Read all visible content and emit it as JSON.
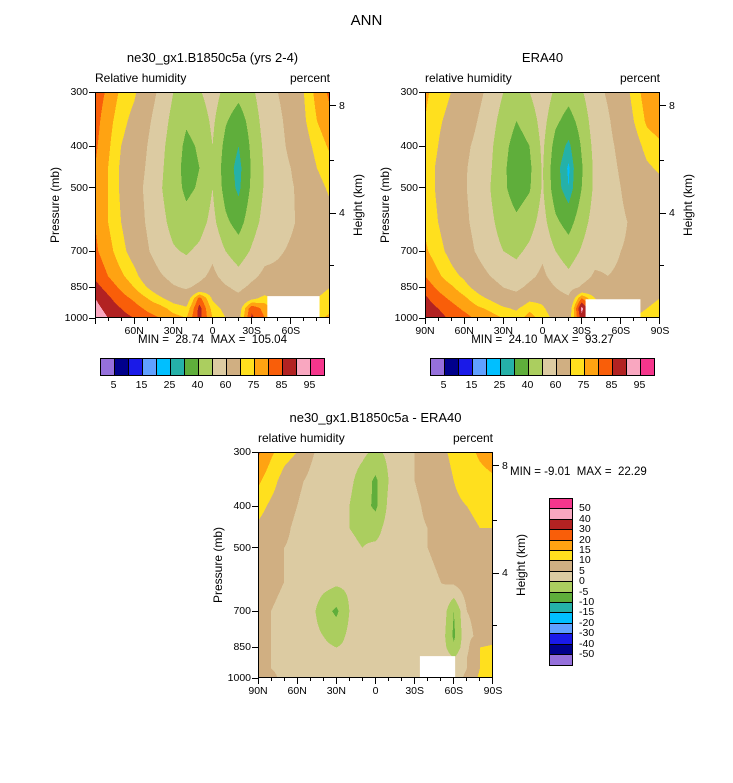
{
  "page_title": "ANN",
  "palette": [
    "#9570DB",
    "#00008B",
    "#1A1AE8",
    "#60A0FF",
    "#00BFFF",
    "#25B1A8",
    "#5FAE3B",
    "#ABCE5F",
    "#DCCBA2",
    "#D0AF82",
    "#FFE01E",
    "#FFA312",
    "#F95E09",
    "#B22222",
    "#F9A7C0",
    "#F5368C"
  ],
  "chart_data": [
    {
      "type": "heatmap",
      "style": "filled-contour-latitude-pressure-section",
      "title": "ne30_gx1.B1850c5a (yrs 2-4)",
      "subtitle_left": "Relative humidity",
      "subtitle_right": "percent",
      "stats_label": "MIN =  28.74  MAX =  105.04",
      "min": 28.74,
      "max": 105.04,
      "ylabel": "Pressure (mb)",
      "y2label": "Height (km)",
      "y_scale": "log-pressure",
      "y_range": [
        300,
        1000
      ],
      "xtick_lats": [
        60,
        30,
        0,
        -30,
        -60
      ],
      "xtick_labels": [
        "60N",
        "30N",
        "0",
        "30S",
        "60S"
      ],
      "ytick_pressures": [
        300,
        400,
        500,
        700,
        850,
        1000
      ],
      "y2ticks": [
        {
          "p": 323,
          "label": "8"
        },
        {
          "p": 432,
          "label": ""
        },
        {
          "p": 572,
          "label": "4"
        },
        {
          "p": 758,
          "label": ""
        }
      ],
      "levels": [
        5,
        10,
        15,
        20,
        25,
        30,
        40,
        50,
        60,
        70,
        75,
        80,
        85,
        90,
        95
      ],
      "colorbar_orientation": "horizontal",
      "colorbar_labels": [
        5,
        15,
        25,
        40,
        60,
        75,
        85,
        95
      ],
      "lats": [
        90,
        80,
        70,
        60,
        50,
        40,
        30,
        20,
        10,
        0,
        -10,
        -20,
        -30,
        -40,
        -50,
        -60,
        -70,
        -80,
        -90
      ],
      "plevs": [
        300,
        350,
        400,
        450,
        500,
        600,
        700,
        800,
        850,
        900,
        950,
        1000
      ],
      "values": [
        [
          83,
          79,
          74,
          71,
          65,
          58,
          50,
          46,
          49,
          55,
          47,
          43,
          48,
          56,
          60,
          64,
          70,
          77,
          81
        ],
        [
          82,
          77,
          72,
          68,
          62,
          55,
          47,
          41,
          44,
          52,
          41,
          35,
          44,
          54,
          58,
          63,
          69,
          75,
          79
        ],
        [
          81,
          76,
          70,
          66,
          60,
          53,
          45,
          38,
          41,
          50,
          37,
          30,
          42,
          52,
          57,
          62,
          67,
          72,
          76
        ],
        [
          80,
          75,
          69,
          65,
          59,
          52,
          44,
          37,
          40,
          49,
          35,
          27,
          41,
          51,
          56,
          60,
          65,
          70,
          73
        ],
        [
          80,
          75,
          69,
          64,
          58,
          51,
          44,
          38,
          41,
          50,
          36,
          28,
          42,
          51,
          56,
          59,
          63,
          68,
          71
        ],
        [
          80,
          75,
          70,
          65,
          59,
          53,
          47,
          43,
          46,
          53,
          42,
          36,
          46,
          53,
          56,
          59,
          62,
          65,
          68
        ],
        [
          81,
          77,
          72,
          67,
          61,
          55,
          51,
          49,
          52,
          58,
          50,
          45,
          51,
          57,
          59,
          61,
          63,
          64,
          66
        ],
        [
          84,
          80,
          76,
          72,
          66,
          61,
          57,
          55,
          58,
          62,
          57,
          53,
          58,
          62,
          62,
          63,
          64,
          66,
          68
        ],
        [
          87,
          83,
          79,
          75,
          70,
          65,
          61,
          59,
          62,
          65,
          61,
          58,
          62,
          65,
          64,
          64,
          66,
          68,
          70
        ],
        [
          90,
          86,
          82,
          79,
          75,
          71,
          67,
          65,
          82,
          69,
          64,
          62,
          68,
          72,
          68,
          66,
          68,
          70,
          72
        ],
        [
          92,
          88,
          85,
          82,
          79,
          77,
          73,
          71,
          87,
          73,
          68,
          66,
          84,
          78,
          72,
          68,
          70,
          72,
          74
        ],
        [
          94,
          90,
          87,
          85,
          82,
          80,
          77,
          75,
          87,
          75,
          70,
          68,
          86,
          80,
          74,
          70,
          72,
          74,
          76
        ]
      ],
      "mask": [
        {
          "lat_n": -42,
          "lat_s": -82,
          "p_top": 890,
          "p_bot": 1000
        }
      ]
    },
    {
      "type": "heatmap",
      "style": "filled-contour-latitude-pressure-section",
      "title": "ERA40",
      "subtitle_left": "relative humidity",
      "subtitle_right": "percent",
      "stats_label": "MIN =  24.10  MAX =  93.27",
      "min": 24.1,
      "max": 93.27,
      "ylabel": "Pressure (mb)",
      "y2label": "Height (km)",
      "y_scale": "log-pressure",
      "y_range": [
        300,
        1000
      ],
      "xtick_lats": [
        90,
        60,
        30,
        0,
        -30,
        -60,
        -90
      ],
      "xtick_labels": [
        "90N",
        "60N",
        "30N",
        "0",
        "30S",
        "60S",
        "90S"
      ],
      "ytick_pressures": [
        300,
        400,
        500,
        700,
        850,
        1000
      ],
      "y2ticks": [
        {
          "p": 323,
          "label": "8"
        },
        {
          "p": 432,
          "label": ""
        },
        {
          "p": 572,
          "label": "4"
        },
        {
          "p": 758,
          "label": ""
        }
      ],
      "levels": [
        5,
        10,
        15,
        20,
        25,
        30,
        40,
        50,
        60,
        70,
        75,
        80,
        85,
        90,
        95
      ],
      "colorbar_orientation": "horizontal",
      "colorbar_labels": [
        5,
        15,
        25,
        40,
        60,
        75,
        85,
        95
      ],
      "lats": [
        90,
        80,
        70,
        60,
        50,
        40,
        30,
        20,
        10,
        0,
        -10,
        -20,
        -30,
        -40,
        -50,
        -60,
        -70,
        -80,
        -90
      ],
      "plevs": [
        300,
        350,
        400,
        450,
        500,
        600,
        700,
        800,
        850,
        900,
        950,
        1000
      ],
      "values": [
        [
          76,
          73,
          70,
          68,
          63,
          57,
          50,
          46,
          50,
          57,
          48,
          44,
          49,
          57,
          61,
          66,
          72,
          78,
          80
        ],
        [
          75,
          71,
          68,
          65,
          60,
          54,
          46,
          40,
          44,
          54,
          42,
          36,
          44,
          55,
          59,
          64,
          70,
          76,
          78
        ],
        [
          74,
          70,
          66,
          62,
          58,
          52,
          43,
          36,
          40,
          52,
          36,
          28,
          41,
          53,
          58,
          62,
          67,
          72,
          74
        ],
        [
          73,
          69,
          65,
          61,
          57,
          51,
          42,
          34,
          38,
          51,
          33,
          24,
          39,
          52,
          57,
          61,
          65,
          69,
          71
        ],
        [
          73,
          69,
          65,
          61,
          56,
          50,
          42,
          35,
          39,
          51,
          34,
          25,
          40,
          52,
          56,
          60,
          63,
          66,
          68
        ],
        [
          74,
          70,
          66,
          62,
          57,
          52,
          46,
          42,
          46,
          54,
          42,
          36,
          46,
          54,
          56,
          59,
          61,
          63,
          65
        ],
        [
          76,
          72,
          68,
          64,
          59,
          54,
          50,
          48,
          52,
          58,
          50,
          45,
          51,
          57,
          58,
          60,
          61,
          62,
          64
        ],
        [
          80,
          76,
          72,
          69,
          64,
          60,
          56,
          54,
          58,
          62,
          56,
          52,
          57,
          61,
          60,
          61,
          62,
          64,
          66
        ],
        [
          83,
          79,
          76,
          72,
          68,
          64,
          60,
          58,
          62,
          65,
          60,
          57,
          61,
          64,
          62,
          62,
          64,
          66,
          68
        ],
        [
          86,
          82,
          79,
          76,
          72,
          69,
          65,
          63,
          68,
          68,
          63,
          61,
          80,
          70,
          66,
          64,
          66,
          68,
          70
        ],
        [
          88,
          85,
          82,
          79,
          76,
          74,
          71,
          69,
          74,
          71,
          66,
          64,
          92,
          74,
          70,
          66,
          68,
          70,
          72
        ],
        [
          90,
          87,
          84,
          82,
          79,
          77,
          75,
          73,
          77,
          73,
          68,
          66,
          88,
          76,
          72,
          68,
          70,
          72,
          74
        ]
      ],
      "mask": [
        {
          "lat_n": -33,
          "lat_s": -75,
          "p_top": 905,
          "p_bot": 1000
        }
      ]
    },
    {
      "type": "heatmap",
      "style": "filled-contour-latitude-pressure-section",
      "title": "ne30_gx1.B1850c5a - ERA40",
      "subtitle_left": "relative humidity",
      "subtitle_right": "percent",
      "stats_label": "MIN = -9.01  MAX =  22.29",
      "min": -9.01,
      "max": 22.29,
      "ylabel": "Pressure (mb)",
      "y2label": "Height (km)",
      "y_scale": "log-pressure",
      "y_range": [
        300,
        1000
      ],
      "xtick_lats": [
        90,
        60,
        30,
        0,
        -30,
        -60,
        -90
      ],
      "xtick_labels": [
        "90N",
        "60N",
        "30N",
        "0",
        "30S",
        "60S",
        "90S"
      ],
      "ytick_pressures": [
        300,
        400,
        500,
        700,
        850,
        1000
      ],
      "y2ticks": [
        {
          "p": 323,
          "label": "8"
        },
        {
          "p": 432,
          "label": ""
        },
        {
          "p": 572,
          "label": "4"
        },
        {
          "p": 758,
          "label": ""
        }
      ],
      "levels": [
        -50,
        -40,
        -30,
        -20,
        -15,
        -10,
        -5,
        0,
        5,
        10,
        15,
        20,
        30,
        40,
        50
      ],
      "colorbar_orientation": "vertical",
      "colorbar_labels": [
        50,
        40,
        30,
        20,
        15,
        10,
        5,
        0,
        -5,
        -10,
        -15,
        -20,
        -30,
        -40,
        -50
      ],
      "lats": [
        90,
        80,
        70,
        60,
        50,
        40,
        30,
        20,
        10,
        0,
        -10,
        -20,
        -30,
        -40,
        -50,
        -60,
        -70,
        -80,
        -90
      ],
      "plevs": [
        300,
        350,
        400,
        450,
        500,
        600,
        700,
        800,
        850,
        900,
        950,
        1000
      ],
      "values": [
        [
          21,
          16,
          12,
          10,
          6,
          3,
          2,
          2,
          1,
          -1,
          1,
          3,
          5,
          7,
          9,
          11,
          13,
          16,
          18
        ],
        [
          16,
          12,
          8,
          6,
          4,
          2,
          1,
          1,
          -2,
          -6,
          0,
          3,
          5,
          7,
          8,
          10,
          12,
          13,
          14
        ],
        [
          12,
          9,
          7,
          5,
          3,
          2,
          1,
          0,
          -3,
          -6,
          1,
          3,
          4,
          6,
          7,
          9,
          10,
          11,
          12
        ],
        [
          9,
          7,
          6,
          4,
          3,
          2,
          1,
          0,
          -1,
          -2,
          2,
          3,
          4,
          5,
          6,
          8,
          9,
          10,
          10
        ],
        [
          8,
          6,
          5,
          4,
          3,
          2,
          1,
          1,
          0,
          1,
          2,
          3,
          4,
          5,
          6,
          7,
          10,
          9,
          9
        ],
        [
          7,
          6,
          5,
          4,
          3,
          2,
          1,
          1,
          1,
          1,
          2,
          3,
          3,
          4,
          5,
          6,
          8,
          8,
          8
        ],
        [
          6,
          5,
          4,
          3,
          2,
          -3,
          -6,
          0,
          1,
          1,
          2,
          3,
          3,
          4,
          4,
          -5,
          5,
          6,
          7
        ],
        [
          6,
          5,
          4,
          3,
          2,
          0,
          -2,
          1,
          1,
          1,
          2,
          3,
          3,
          4,
          3,
          -6,
          4,
          6,
          7
        ],
        [
          6,
          5,
          4,
          3,
          2,
          1,
          0,
          1,
          1,
          2,
          2,
          3,
          3,
          4,
          3,
          -4,
          4,
          10,
          11
        ],
        [
          6,
          5,
          4,
          3,
          2,
          1,
          1,
          1,
          2,
          2,
          2,
          3,
          3,
          4,
          4,
          0,
          5,
          10,
          11
        ],
        [
          7,
          5,
          4,
          3,
          2,
          1,
          1,
          1,
          2,
          2,
          2,
          3,
          3,
          4,
          4,
          2,
          5,
          10,
          11
        ],
        [
          7,
          6,
          4,
          3,
          2,
          1,
          1,
          1,
          2,
          2,
          2,
          3,
          3,
          4,
          5,
          3,
          6,
          11,
          12
        ]
      ],
      "mask": [
        {
          "lat_n": -34,
          "lat_s": -61,
          "p_top": 890,
          "p_bot": 1000
        }
      ]
    }
  ]
}
